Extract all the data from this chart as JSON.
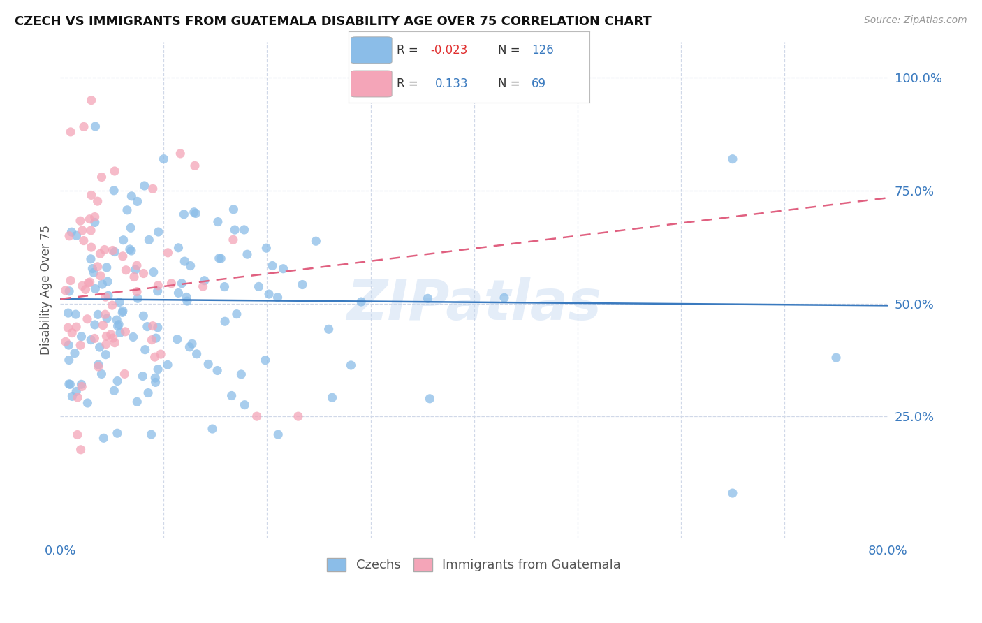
{
  "title": "CZECH VS IMMIGRANTS FROM GUATEMALA DISABILITY AGE OVER 75 CORRELATION CHART",
  "source": "Source: ZipAtlas.com",
  "ylabel": "Disability Age Over 75",
  "xlim": [
    0.0,
    0.8
  ],
  "ylim": [
    -0.02,
    1.08
  ],
  "czechs_R": -0.023,
  "czechs_N": 126,
  "guatemala_R": 0.133,
  "guatemala_N": 69,
  "czechs_color": "#8bbde8",
  "guatemala_color": "#f4a5b8",
  "czechs_line_color": "#3a7abf",
  "guatemala_line_color": "#e06080",
  "legend_text_color": "#3a7abf",
  "legend_R_neg_color": "#e03030",
  "background_color": "#ffffff",
  "watermark": "ZIPatlas",
  "grid_color": "#d0d8e8",
  "title_color": "#111111",
  "axis_tick_color": "#3a7abf",
  "ylabel_color": "#555555"
}
